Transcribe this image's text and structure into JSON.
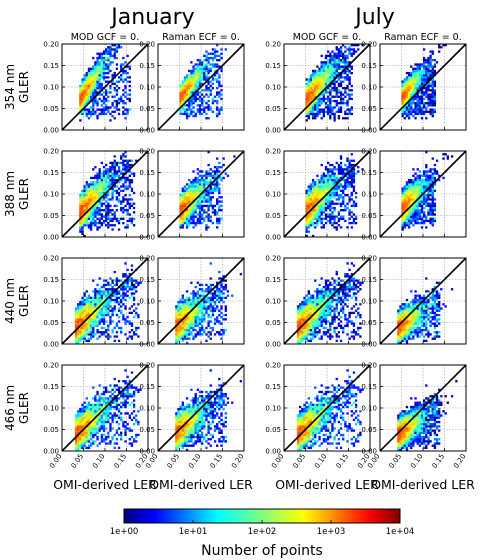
{
  "chart_data": {
    "type": "heatmap",
    "months": [
      "January",
      "July"
    ],
    "column_titles": [
      "MOD GCF = 0.",
      "Raman ECF = 0."
    ],
    "row_labels": [
      [
        "354 nm",
        "GLER"
      ],
      [
        "388 nm",
        "GLER"
      ],
      [
        "440 nm",
        "GLER"
      ],
      [
        "466 nm",
        "GLER"
      ]
    ],
    "xlabel": "OMI-derived LER",
    "ylabel": "GLER",
    "xlim": [
      0.0,
      0.2
    ],
    "ylim": [
      0.0,
      0.2
    ],
    "x_ticks": [
      "0.00",
      "0.05",
      "0.10",
      "0.15",
      "0.20"
    ],
    "y_ticks": [
      "0.00",
      "0.05",
      "0.10",
      "0.15",
      "0.20"
    ],
    "grid": true,
    "reference_line": "1:1",
    "colorbar": {
      "label": "Number of points",
      "scale": "log",
      "ticks": [
        "1e+00",
        "1e+01",
        "1e+02",
        "1e+03",
        "1e+04"
      ],
      "colormap": "jet"
    },
    "panels": [
      {
        "row": 0,
        "col": 0,
        "cx": 0.04,
        "cy": 0.065,
        "spread_x": 0.03,
        "spread_y": 0.025,
        "tail_x": 0.13
      },
      {
        "row": 0,
        "col": 1,
        "cx": 0.05,
        "cy": 0.07,
        "spread_x": 0.028,
        "spread_y": 0.022,
        "tail_x": 0.12
      },
      {
        "row": 0,
        "col": 2,
        "cx": 0.05,
        "cy": 0.065,
        "spread_x": 0.035,
        "spread_y": 0.03,
        "tail_x": 0.13
      },
      {
        "row": 0,
        "col": 3,
        "cx": 0.05,
        "cy": 0.07,
        "spread_x": 0.022,
        "spread_y": 0.022,
        "tail_x": 0.1
      },
      {
        "row": 1,
        "col": 0,
        "cx": 0.04,
        "cy": 0.05,
        "spread_x": 0.035,
        "spread_y": 0.032,
        "tail_x": 0.14
      },
      {
        "row": 1,
        "col": 1,
        "cx": 0.05,
        "cy": 0.055,
        "spread_x": 0.03,
        "spread_y": 0.03,
        "tail_x": 0.12
      },
      {
        "row": 1,
        "col": 2,
        "cx": 0.05,
        "cy": 0.055,
        "spread_x": 0.035,
        "spread_y": 0.035,
        "tail_x": 0.14
      },
      {
        "row": 1,
        "col": 3,
        "cx": 0.05,
        "cy": 0.06,
        "spread_x": 0.025,
        "spread_y": 0.03,
        "tail_x": 0.1
      },
      {
        "row": 2,
        "col": 0,
        "cx": 0.03,
        "cy": 0.03,
        "spread_x": 0.04,
        "spread_y": 0.035,
        "tail_x": 0.15
      },
      {
        "row": 2,
        "col": 1,
        "cx": 0.04,
        "cy": 0.035,
        "spread_x": 0.035,
        "spread_y": 0.035,
        "tail_x": 0.13
      },
      {
        "row": 2,
        "col": 2,
        "cx": 0.03,
        "cy": 0.03,
        "spread_x": 0.04,
        "spread_y": 0.035,
        "tail_x": 0.15
      },
      {
        "row": 2,
        "col": 3,
        "cx": 0.04,
        "cy": 0.03,
        "spread_x": 0.03,
        "spread_y": 0.03,
        "tail_x": 0.11
      },
      {
        "row": 3,
        "col": 0,
        "cx": 0.03,
        "cy": 0.03,
        "spread_x": 0.04,
        "spread_y": 0.035,
        "tail_x": 0.15
      },
      {
        "row": 3,
        "col": 1,
        "cx": 0.04,
        "cy": 0.035,
        "spread_x": 0.035,
        "spread_y": 0.035,
        "tail_x": 0.13
      },
      {
        "row": 3,
        "col": 2,
        "cx": 0.03,
        "cy": 0.03,
        "spread_x": 0.04,
        "spread_y": 0.035,
        "tail_x": 0.15
      },
      {
        "row": 3,
        "col": 3,
        "cx": 0.04,
        "cy": 0.03,
        "spread_x": 0.03,
        "spread_y": 0.03,
        "tail_x": 0.11
      }
    ]
  }
}
